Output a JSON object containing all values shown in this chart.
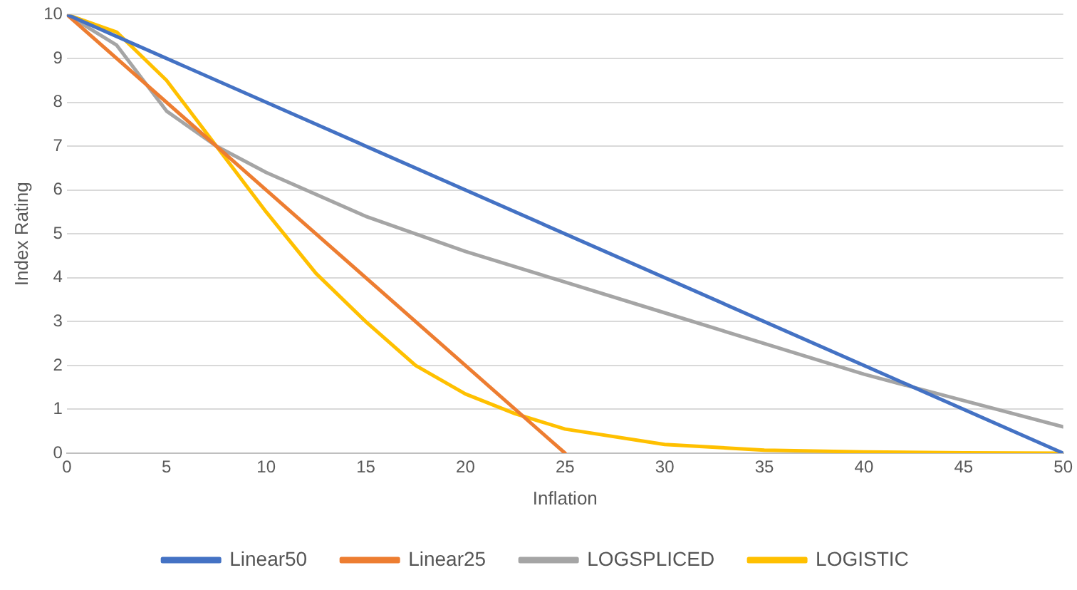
{
  "chart_data": {
    "type": "line",
    "xlabel": "Inflation",
    "ylabel": "Index Rating",
    "xlim": [
      0,
      50
    ],
    "xticks": [
      0,
      5,
      10,
      15,
      20,
      25,
      30,
      35,
      40,
      45,
      50
    ],
    "ylim": [
      0,
      10
    ],
    "yticks": [
      0,
      1,
      2,
      3,
      4,
      5,
      6,
      7,
      8,
      9,
      10
    ],
    "grid": "y",
    "legend": "bottom",
    "marker": "none",
    "line_style": "solid",
    "series": [
      {
        "name": "Linear50",
        "color": "#4472c4",
        "x": [
          0,
          50
        ],
        "values": [
          10,
          0
        ]
      },
      {
        "name": "Linear25",
        "color": "#ed7d31",
        "x": [
          0,
          25
        ],
        "values": [
          10,
          0
        ]
      },
      {
        "name": "LOGSPLICED",
        "color": "#a5a5a5",
        "x": [
          0,
          2.5,
          5,
          7.5,
          10,
          15,
          20,
          25,
          30,
          35,
          40,
          45,
          50
        ],
        "values": [
          10,
          9.3,
          7.8,
          7.0,
          6.4,
          5.4,
          4.6,
          3.9,
          3.2,
          2.5,
          1.8,
          1.2,
          0.6
        ]
      },
      {
        "name": "LOGISTIC",
        "color": "#ffc000",
        "x": [
          0,
          2.5,
          5,
          7.5,
          10,
          12.5,
          15,
          17.5,
          20,
          22.5,
          25,
          30,
          35,
          40,
          45,
          50
        ],
        "values": [
          10,
          9.6,
          8.5,
          7.0,
          5.5,
          4.1,
          3.0,
          2.0,
          1.35,
          0.9,
          0.55,
          0.2,
          0.07,
          0.03,
          0.01,
          0
        ]
      }
    ]
  }
}
